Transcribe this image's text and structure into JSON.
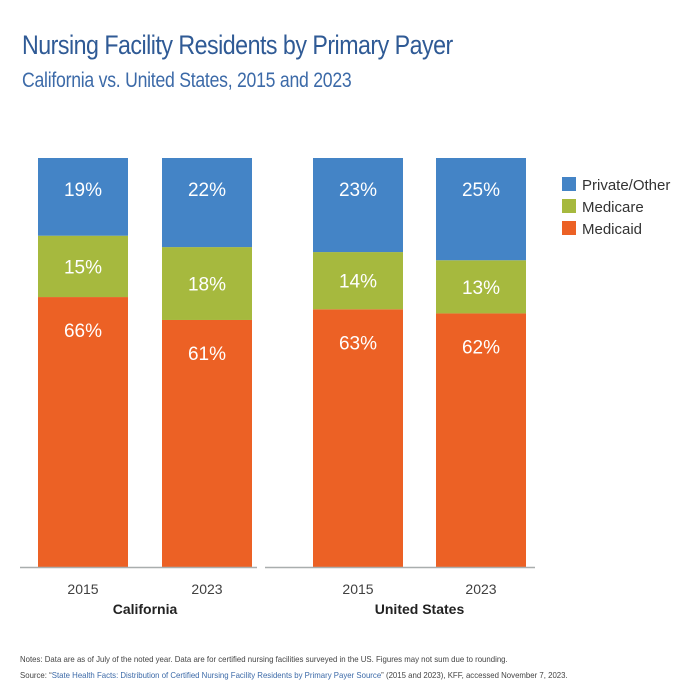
{
  "header": {
    "title": "Nursing Facility Residents by Primary Payer",
    "subtitle": "California vs. United States, 2015 and 2023"
  },
  "footer": {
    "notes": "Notes: Data are as of July of the noted year. Data are for certified nursing facilities surveyed in the US. Figures may not sum due to rounding.",
    "source_prefix": "Source: “",
    "source_link": "State Health Facts: Distribution of Certified Nursing Facility Residents by Primary Payer Source",
    "source_suffix": "” (2015 and 2023), KFF, accessed November 7, 2023."
  },
  "chart_data": {
    "type": "bar",
    "stacked": true,
    "normalized": true,
    "title": "Nursing Facility Residents by Primary Payer",
    "subtitle": "California vs. United States, 2015 and 2023",
    "xlabel": "",
    "ylabel": "",
    "ylim": [
      0,
      100
    ],
    "grid": false,
    "legend_position": "right",
    "groups": [
      {
        "name": "California",
        "categories": [
          "2015",
          "2023"
        ]
      },
      {
        "name": "United States",
        "categories": [
          "2015",
          "2023"
        ]
      }
    ],
    "categories": [
      "2015",
      "2023",
      "2015",
      "2023"
    ],
    "series": [
      {
        "name": "Medicaid",
        "color": "#ec6125",
        "values": [
          66,
          61,
          63,
          62
        ],
        "labels": [
          "66%",
          "61%",
          "63%",
          "62%"
        ]
      },
      {
        "name": "Medicare",
        "color": "#a6b93e",
        "values": [
          15,
          18,
          14,
          13
        ],
        "labels": [
          "15%",
          "18%",
          "14%",
          "13%"
        ]
      },
      {
        "name": "Private/Other",
        "color": "#4484c6",
        "values": [
          19,
          22,
          23,
          25
        ],
        "labels": [
          "19%",
          "22%",
          "23%",
          "25%"
        ]
      }
    ],
    "legend": [
      "Private/Other",
      "Medicare",
      "Medicaid"
    ]
  }
}
